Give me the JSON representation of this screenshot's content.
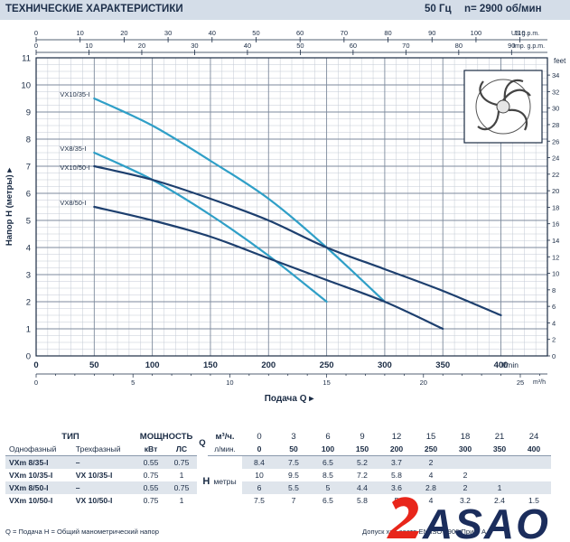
{
  "header": {
    "title": "ТЕХНИЧЕСКИЕ ХАРАКТЕРИСТИКИ",
    "freq": "50 Гц",
    "speed": "n= 2900 об/мин"
  },
  "chart_data": {
    "type": "line",
    "xlabel": "Подача Q",
    "ylabel": "Напор H (метры)",
    "x_unit_lmin": "l/min",
    "x_unit_m3h": "m³/h",
    "x_unit_usgpm": "US g.p.m.",
    "x_unit_impgpm": "Imp. g.p.m.",
    "y_unit_feet": "feet",
    "xlim": [
      0,
      440
    ],
    "ylim": [
      0,
      11
    ],
    "grid": true,
    "x_ticks_lmin": [
      0,
      50,
      100,
      150,
      200,
      250,
      300,
      350,
      400
    ],
    "x_ticks_m3h": [
      0,
      5,
      10,
      15,
      20,
      25
    ],
    "x_ticks_usgpm": [
      0,
      10,
      20,
      30,
      40,
      50,
      60,
      70,
      80,
      90,
      100,
      110
    ],
    "x_ticks_impgpm": [
      0,
      10,
      20,
      30,
      40,
      50,
      60,
      70,
      80,
      90
    ],
    "y_ticks_m": [
      0,
      1,
      2,
      3,
      4,
      5,
      6,
      7,
      8,
      9,
      10,
      11
    ],
    "y_ticks_feet": [
      0,
      2,
      4,
      6,
      8,
      10,
      12,
      14,
      16,
      18,
      20,
      22,
      24,
      26,
      28,
      30,
      32,
      34
    ],
    "series": [
      {
        "name": "VX10/35-I",
        "color": "#2f9fc7",
        "x": [
          50,
          100,
          150,
          200,
          250,
          300
        ],
        "y": [
          9.5,
          8.5,
          7.2,
          5.8,
          4,
          2
        ]
      },
      {
        "name": "VX8/35-I",
        "color": "#2f9fc7",
        "x": [
          50,
          100,
          150,
          200,
          250
        ],
        "y": [
          7.5,
          6.5,
          5.2,
          3.7,
          2
        ]
      },
      {
        "name": "VX10/50-I",
        "color": "#1d3f6e",
        "x": [
          50,
          100,
          150,
          200,
          250,
          300,
          350,
          400
        ],
        "y": [
          7,
          6.5,
          5.8,
          5,
          4,
          3.2,
          2.4,
          1.5
        ]
      },
      {
        "name": "VX8/50-I",
        "color": "#1d3f6e",
        "x": [
          50,
          100,
          150,
          200,
          250,
          300,
          350
        ],
        "y": [
          5.5,
          5,
          4.4,
          3.6,
          2.8,
          2,
          1
        ]
      }
    ]
  },
  "table": {
    "h_type": "ТИП",
    "h_power": "МОЩНОСТЬ",
    "h_single": "Однофазный",
    "h_three": "Трехфазный",
    "h_kw": "кВт",
    "h_hp": "ЛС",
    "q_symbol": "Q",
    "unit_m3h": "м³/ч.",
    "unit_lmin": "л/мин.",
    "h_symbol": "H",
    "h_meters": "метры",
    "m3h": [
      "0",
      "3",
      "6",
      "9",
      "12",
      "15",
      "18",
      "21",
      "24"
    ],
    "lmin": [
      "0",
      "50",
      "100",
      "150",
      "200",
      "250",
      "300",
      "350",
      "400"
    ],
    "rows": [
      {
        "single": "VXm 8/35-I",
        "three": "–",
        "kw": "0.55",
        "hp": "0.75",
        "h": [
          "8.4",
          "7.5",
          "6.5",
          "5.2",
          "3.7",
          "2",
          "",
          "",
          ""
        ]
      },
      {
        "single": "VXm 10/35-I",
        "three": "VX 10/35-I",
        "kw": "0.75",
        "hp": "1",
        "h": [
          "10",
          "9.5",
          "8.5",
          "7.2",
          "5.8",
          "4",
          "2",
          "",
          ""
        ]
      },
      {
        "single": "VXm 8/50-I",
        "three": "–",
        "kw": "0.55",
        "hp": "0.75",
        "h": [
          "6",
          "5.5",
          "5",
          "4.4",
          "3.6",
          "2.8",
          "2",
          "1",
          ""
        ]
      },
      {
        "single": "VXm 10/50-I",
        "three": "VX 10/50-I",
        "kw": "0.75",
        "hp": "1",
        "h": [
          "7.5",
          "7",
          "6.5",
          "5.8",
          "5",
          "4",
          "3.2",
          "2.4",
          "1.5"
        ]
      }
    ]
  },
  "footer": {
    "legend": "Q = Подача  H = Общий манометрический напор",
    "tolerance": "Допуск хар        соотв       EN ISO 9906 Прил. A."
  },
  "logo": {
    "text": "ASAO",
    "colors": {
      "red": "#e8261b",
      "navy": "#1b2d5c"
    }
  }
}
